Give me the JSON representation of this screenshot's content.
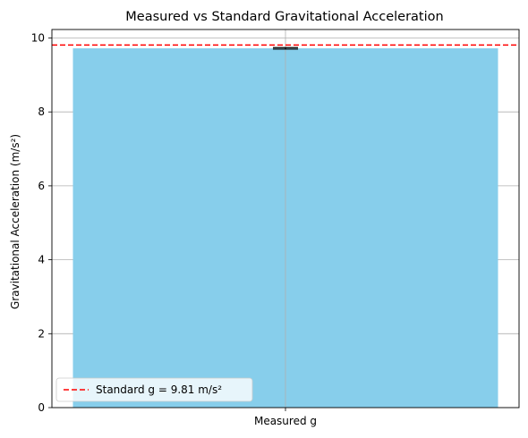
{
  "chart_data": {
    "type": "bar",
    "title": "Measured vs Standard Gravitational Acceleration",
    "xlabel": "",
    "ylabel": "Gravitational Acceleration (m/s²)",
    "categories": [
      "Measured g"
    ],
    "values": [
      9.72
    ],
    "error": [
      0.02
    ],
    "ylim": [
      0,
      10.23
    ],
    "yticks": [
      0,
      2,
      4,
      6,
      8,
      10
    ],
    "grid": true,
    "bar_color": "#87ceeb",
    "reference_line": {
      "value": 9.81,
      "color": "#ff0000",
      "style": "dashed",
      "label": "Standard g = 9.81 m/s²"
    },
    "legend": {
      "placement": "lower-left",
      "entries": [
        "Standard g = 9.81 m/s²"
      ]
    }
  }
}
